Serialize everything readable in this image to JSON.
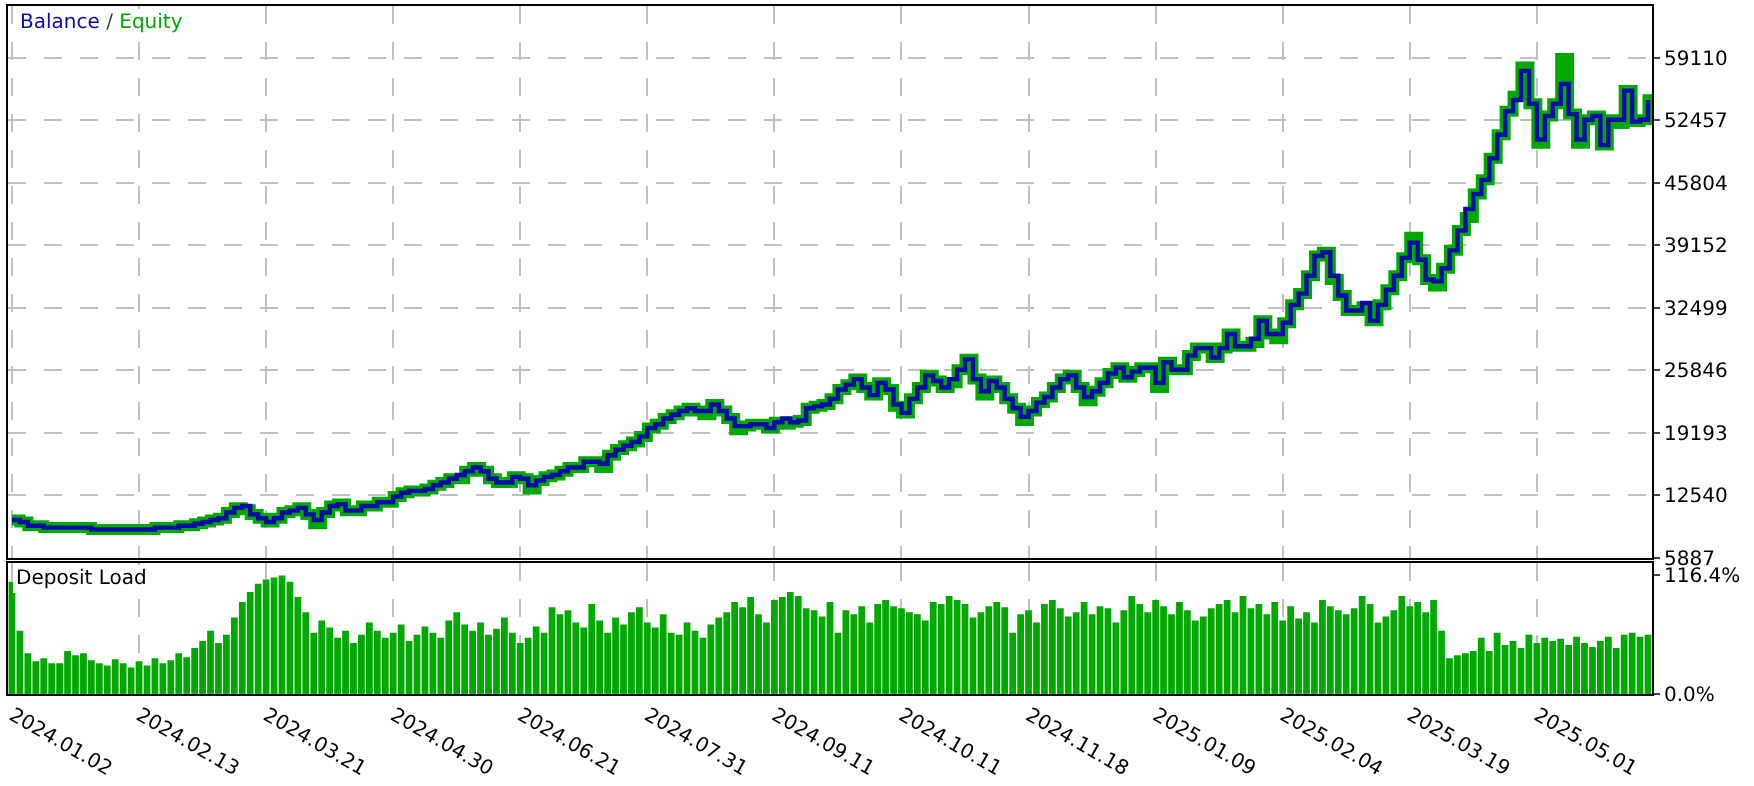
{
  "chart_data": [
    {
      "type": "step",
      "legend": "top left",
      "grid": true,
      "tick_labels": "y",
      "annotations": [
        "/"
      ],
      "categories": [
        "2024.01.02",
        null,
        null,
        null,
        null,
        null,
        null,
        null,
        null,
        null,
        null,
        null,
        null,
        null,
        null,
        null,
        "2024.02.13",
        null,
        null,
        null,
        null,
        null,
        null,
        null,
        null,
        null,
        null,
        null,
        null,
        null,
        null,
        null,
        "2024.03.21",
        null,
        null,
        null,
        null,
        null,
        null,
        null,
        null,
        null,
        null,
        null,
        null,
        null,
        null,
        null,
        "2024.04.30",
        null,
        null,
        null,
        null,
        null,
        null,
        null,
        null,
        null,
        null,
        null,
        null,
        null,
        null,
        null,
        "2024.06.21",
        null,
        null,
        null,
        null,
        null,
        null,
        null,
        null,
        null,
        null,
        null,
        null,
        null,
        null,
        null,
        "2024.07.31",
        null,
        null,
        null,
        null,
        null,
        null,
        null,
        null,
        null,
        null,
        null,
        null,
        null,
        null,
        null,
        "2024.09.11",
        null,
        null,
        null,
        null,
        null,
        null,
        null,
        null,
        null,
        null,
        null,
        null,
        null,
        null,
        null,
        "2024.10.11",
        null,
        null,
        null,
        null,
        null,
        null,
        null,
        null,
        null,
        null,
        null,
        null,
        null,
        null,
        null,
        "2024.11.18",
        null,
        null,
        null,
        null,
        null,
        null,
        null,
        null,
        null,
        null,
        null,
        null,
        null,
        null,
        null,
        "2025.01.09",
        null,
        null,
        null,
        null,
        null,
        null,
        null,
        null,
        null,
        null,
        null,
        null,
        null,
        null,
        null,
        "2025.02.04",
        null,
        null,
        null,
        null,
        null,
        null,
        null,
        null,
        null,
        null,
        null,
        null,
        null,
        null,
        null,
        "2025.03.19",
        null,
        null,
        null,
        null,
        null,
        null,
        null,
        null,
        null,
        null,
        null,
        null,
        null,
        null,
        null,
        "2025.05.01",
        null,
        null,
        null,
        null,
        null,
        null,
        null,
        null,
        null,
        null,
        null,
        null,
        null,
        null
      ],
      "ylim": [
        5887,
        64600
      ],
      "yticks": [
        5887,
        12540,
        19193,
        25846,
        32499,
        39152,
        45804,
        52457,
        59110
      ],
      "series": [
        {
          "name": "Balance",
          "color": "#0a0aa8",
          "values": [
            9900,
            9700,
            9300,
            9300,
            9100,
            9100,
            9100,
            9100,
            9100,
            9100,
            8900,
            8900,
            8900,
            8900,
            8900,
            8900,
            8900,
            8900,
            9100,
            9100,
            9100,
            9300,
            9300,
            9500,
            9700,
            9900,
            10100,
            10700,
            11200,
            11400,
            10500,
            10100,
            9700,
            10100,
            10700,
            10900,
            11200,
            10500,
            9900,
            10700,
            11400,
            11600,
            10900,
            10900,
            11400,
            11400,
            11800,
            11800,
            12400,
            12800,
            13000,
            13000,
            13200,
            13600,
            13900,
            14300,
            14700,
            15100,
            15500,
            15100,
            14300,
            13900,
            13900,
            14500,
            14300,
            13600,
            14100,
            14500,
            14700,
            15100,
            15500,
            15500,
            16100,
            16100,
            15900,
            16800,
            17400,
            17800,
            18200,
            18800,
            19700,
            20100,
            20700,
            21100,
            21500,
            21800,
            21500,
            21500,
            22200,
            21500,
            20700,
            19900,
            19900,
            20100,
            20100,
            19700,
            20300,
            20700,
            20300,
            20500,
            21800,
            22000,
            22200,
            22800,
            23800,
            24300,
            24900,
            24000,
            23200,
            24500,
            23800,
            22200,
            21300,
            22800,
            24000,
            25300,
            24700,
            24000,
            24900,
            25900,
            27000,
            24900,
            23600,
            24700,
            24000,
            22800,
            21800,
            20900,
            21500,
            22400,
            23000,
            24000,
            24900,
            25300,
            24000,
            23000,
            23600,
            24500,
            25500,
            26100,
            25100,
            25700,
            26100,
            26100,
            24500,
            26700,
            25900,
            25900,
            27400,
            28200,
            28200,
            27200,
            28200,
            29700,
            28400,
            28400,
            29200,
            31100,
            29700,
            29700,
            30900,
            32800,
            34000,
            35900,
            38000,
            38400,
            35900,
            33800,
            32200,
            32200,
            33000,
            31100,
            32800,
            34400,
            35900,
            37800,
            39400,
            37600,
            35500,
            35300,
            36700,
            38600,
            40700,
            43000,
            44600,
            46100,
            48400,
            50900,
            53400,
            54600,
            57700,
            54200,
            50400,
            52900,
            54200,
            56300,
            53100,
            50400,
            52500,
            52900,
            49800,
            52500,
            52500,
            55600,
            52300,
            52500,
            54600
          ]
        },
        {
          "name": "Equity",
          "color": "#00a800",
          "values": [
            9900,
            9700,
            9300,
            9300,
            9100,
            9100,
            9100,
            9100,
            9100,
            9100,
            8900,
            8900,
            8900,
            8900,
            8900,
            8900,
            8900,
            8900,
            9100,
            9100,
            9100,
            9300,
            9300,
            9500,
            9700,
            9900,
            10100,
            10700,
            11200,
            11000,
            10500,
            10100,
            9700,
            10100,
            10700,
            10900,
            11200,
            10500,
            9500,
            10700,
            11400,
            11600,
            10900,
            10900,
            11400,
            11400,
            11800,
            11800,
            12400,
            12800,
            13000,
            13000,
            13200,
            13600,
            13900,
            14300,
            14300,
            15100,
            15500,
            15100,
            14300,
            13900,
            13900,
            14500,
            14300,
            13200,
            14100,
            14500,
            14700,
            15100,
            15500,
            15500,
            16100,
            16100,
            15500,
            16800,
            17400,
            17800,
            18200,
            18800,
            19700,
            20100,
            20700,
            21100,
            21500,
            21800,
            21500,
            21100,
            22200,
            21500,
            20700,
            19500,
            19900,
            20100,
            20100,
            19700,
            20300,
            20100,
            20300,
            20500,
            21800,
            22000,
            22200,
            22800,
            23800,
            24300,
            24900,
            24000,
            23200,
            24500,
            23800,
            22000,
            21300,
            22800,
            24000,
            25300,
            24700,
            24000,
            24500,
            25900,
            27000,
            24900,
            23200,
            24700,
            24000,
            22800,
            21800,
            20500,
            21500,
            22400,
            23000,
            24000,
            24900,
            25300,
            24000,
            22600,
            23600,
            24500,
            25500,
            26100,
            25100,
            25700,
            26100,
            26100,
            24000,
            26700,
            25900,
            25900,
            27400,
            28200,
            28200,
            27200,
            28200,
            29700,
            28400,
            28400,
            28800,
            31100,
            29700,
            29200,
            30900,
            32800,
            34000,
            35900,
            38000,
            38400,
            35500,
            33800,
            32200,
            32200,
            32600,
            31100,
            32800,
            34400,
            35900,
            37800,
            40000,
            37600,
            35500,
            34800,
            36700,
            38600,
            40700,
            42100,
            44600,
            46100,
            48400,
            50900,
            53400,
            55000,
            58100,
            54200,
            50000,
            52900,
            54200,
            59000,
            53100,
            50000,
            52500,
            52900,
            49800,
            52500,
            52100,
            55600,
            52300,
            52500,
            55200
          ]
        }
      ]
    },
    {
      "type": "bar",
      "title": "Deposit Load",
      "grid": "x",
      "color": "#00a800",
      "categories": [
        "2024.01.02",
        null,
        null,
        null,
        null,
        null,
        null,
        null,
        null,
        null,
        null,
        null,
        null,
        null,
        null,
        null,
        "2024.02.13",
        null,
        null,
        null,
        null,
        null,
        null,
        null,
        null,
        null,
        null,
        null,
        null,
        null,
        null,
        null,
        "2024.03.21",
        null,
        null,
        null,
        null,
        null,
        null,
        null,
        null,
        null,
        null,
        null,
        null,
        null,
        null,
        null,
        "2024.04.30",
        null,
        null,
        null,
        null,
        null,
        null,
        null,
        null,
        null,
        null,
        null,
        null,
        null,
        null,
        null,
        "2024.06.21",
        null,
        null,
        null,
        null,
        null,
        null,
        null,
        null,
        null,
        null,
        null,
        null,
        null,
        null,
        null,
        "2024.07.31",
        null,
        null,
        null,
        null,
        null,
        null,
        null,
        null,
        null,
        null,
        null,
        null,
        null,
        null,
        null,
        "2024.09.11",
        null,
        null,
        null,
        null,
        null,
        null,
        null,
        null,
        null,
        null,
        null,
        null,
        null,
        null,
        null,
        "2024.10.11",
        null,
        null,
        null,
        null,
        null,
        null,
        null,
        null,
        null,
        null,
        null,
        null,
        null,
        null,
        null,
        "2024.11.18",
        null,
        null,
        null,
        null,
        null,
        null,
        null,
        null,
        null,
        null,
        null,
        null,
        null,
        null,
        null,
        "2025.01.09",
        null,
        null,
        null,
        null,
        null,
        null,
        null,
        null,
        null,
        null,
        null,
        null,
        null,
        null,
        null,
        "2025.02.04",
        null,
        null,
        null,
        null,
        null,
        null,
        null,
        null,
        null,
        null,
        null,
        null,
        null,
        null,
        null,
        "2025.03.19",
        null,
        null,
        null,
        null,
        null,
        null,
        null,
        null,
        null,
        null,
        null,
        null,
        null,
        null,
        null,
        "2025.05.01",
        null,
        null,
        null,
        null,
        null,
        null,
        null,
        null,
        null,
        null,
        null,
        null,
        null,
        null
      ],
      "ylim": [
        0,
        128
      ],
      "yticks": [
        {
          "value": 0,
          "label": "0.0%"
        },
        {
          "value": 116.4,
          "label": "116.4%"
        }
      ],
      "values": [
        110,
        62,
        40,
        32,
        35,
        30,
        30,
        42,
        38,
        40,
        33,
        30,
        28,
        34,
        30,
        26,
        32,
        28,
        35,
        30,
        33,
        40,
        36,
        45,
        52,
        62,
        50,
        58,
        75,
        90,
        100,
        108,
        112,
        114,
        116,
        110,
        95,
        80,
        60,
        72,
        65,
        55,
        62,
        50,
        58,
        70,
        62,
        55,
        60,
        68,
        52,
        58,
        66,
        60,
        55,
        72,
        80,
        68,
        62,
        70,
        58,
        64,
        75,
        60,
        50,
        55,
        66,
        60,
        85,
        78,
        82,
        70,
        65,
        88,
        72,
        60,
        75,
        68,
        80,
        85,
        70,
        65,
        78,
        60,
        58,
        70,
        62,
        55,
        68,
        75,
        80,
        90,
        85,
        95,
        78,
        70,
        92,
        95,
        100,
        96,
        84,
        82,
        76,
        90,
        60,
        82,
        78,
        86,
        70,
        88,
        92,
        86,
        84,
        80,
        78,
        72,
        90,
        88,
        96,
        92,
        88,
        75,
        80,
        86,
        90,
        85,
        60,
        78,
        82,
        70,
        88,
        92,
        84,
        76,
        80,
        90,
        78,
        86,
        84,
        70,
        82,
        96,
        88,
        80,
        92,
        86,
        78,
        90,
        82,
        72,
        76,
        84,
        88,
        92,
        80,
        96,
        84,
        88,
        78,
        90,
        72,
        86,
        74,
        80,
        70,
        92,
        86,
        82,
        78,
        84,
        96,
        88,
        70,
        76,
        82,
        96,
        86,
        90,
        80,
        92,
        62,
        35,
        38,
        40,
        42,
        55,
        42,
        60,
        48,
        52,
        45,
        58,
        50,
        55,
        52,
        54,
        48,
        56,
        50,
        46,
        52,
        56,
        45,
        58,
        60,
        56,
        58
      ]
    }
  ]
}
